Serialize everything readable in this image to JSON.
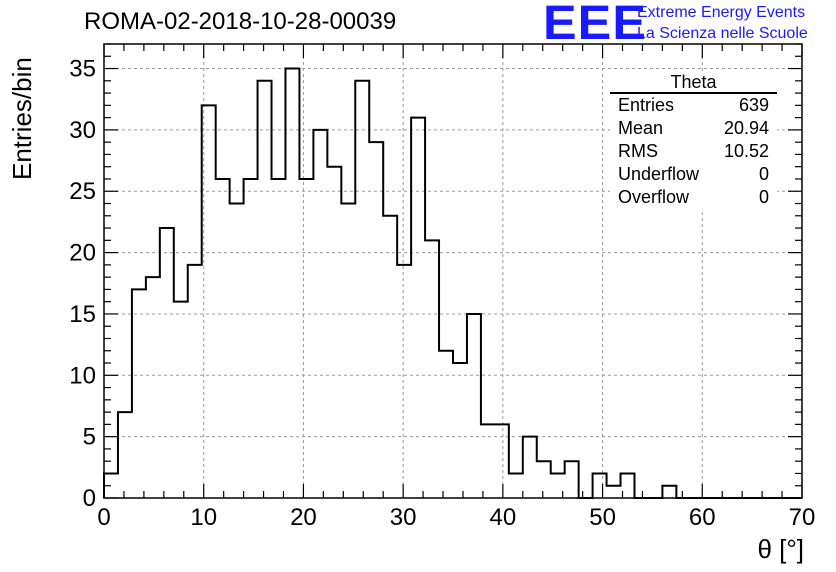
{
  "header": {
    "title": "ROMA-02-2018-10-28-00039"
  },
  "logo": {
    "mark": "EEE",
    "line1": "Extreme Energy Events",
    "line2": "La Scienza nelle Scuole",
    "color": "#1a1aff"
  },
  "stats_box": {
    "title": "Theta",
    "rows": [
      {
        "label": "Entries",
        "value": "639"
      },
      {
        "label": "Mean",
        "value": "20.94"
      },
      {
        "label": "RMS",
        "value": "10.52"
      },
      {
        "label": "Underflow",
        "value": "0"
      },
      {
        "label": "Overflow",
        "value": "0"
      }
    ]
  },
  "chart_data": {
    "type": "bar",
    "title": "ROMA-02-2018-10-28-00039",
    "xlabel": "θ [°]",
    "ylabel": "Entries/bin",
    "xlim": [
      0,
      70
    ],
    "ylim": [
      0,
      37
    ],
    "bin_width": 1.4,
    "x_ticks": [
      0,
      10,
      20,
      30,
      40,
      50,
      60,
      70
    ],
    "y_ticks": [
      0,
      5,
      10,
      15,
      20,
      25,
      30,
      35
    ],
    "grid": true,
    "values": [
      2,
      7,
      17,
      18,
      22,
      16,
      19,
      32,
      26,
      24,
      26,
      34,
      26,
      35,
      26,
      30,
      27,
      24,
      34,
      29,
      23,
      19,
      31,
      21,
      12,
      11,
      15,
      6,
      6,
      2,
      5,
      3,
      2,
      3,
      0,
      2,
      1,
      2,
      0,
      0,
      1,
      0,
      0,
      0,
      0,
      0,
      0,
      0,
      0,
      0
    ]
  }
}
